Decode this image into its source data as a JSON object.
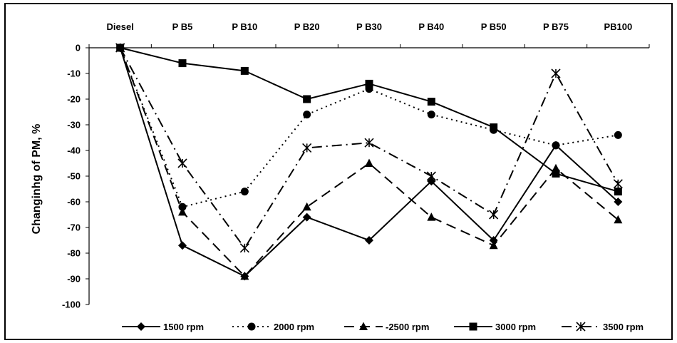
{
  "chart_data": {
    "type": "line",
    "title": "",
    "xlabel": "",
    "ylabel": "Changinhg of PM, %",
    "ylim": [
      -100,
      0
    ],
    "yticks": [
      0,
      -10,
      -20,
      -30,
      -40,
      -50,
      -60,
      -70,
      -80,
      -90,
      -100
    ],
    "x_axis_position": "top",
    "grid": false,
    "legend_position": "bottom",
    "categories": [
      "Diesel",
      "P B5",
      "P B10",
      "P B20",
      "P B30",
      "P B40",
      "P B50",
      "P B75",
      "PB100"
    ],
    "series": [
      {
        "name": "1500 rpm",
        "marker": "diamond",
        "dash": "solid",
        "color": "#000000",
        "values": [
          0,
          -77,
          -89,
          -66,
          -75,
          -52,
          -75,
          -38,
          -60
        ]
      },
      {
        "name": "2000 rpm",
        "marker": "circle",
        "dash": "dot",
        "color": "#000000",
        "values": [
          0,
          -62,
          -56,
          -26,
          -16,
          -26,
          -32,
          -38,
          -34
        ]
      },
      {
        "name": "2500 rpm",
        "legend_prefix": "-",
        "marker": "triangle",
        "dash": "dash",
        "color": "#000000",
        "values": [
          0,
          -64,
          -89,
          -62,
          -45,
          -66,
          -77,
          -47,
          -67
        ]
      },
      {
        "name": "3000 rpm",
        "marker": "square",
        "dash": "solid",
        "color": "#000000",
        "values": [
          0,
          -6,
          -9,
          -20,
          -14,
          -21,
          -31,
          -49,
          -56
        ]
      },
      {
        "name": "3500 rpm",
        "marker": "asterisk",
        "dash": "dashdot",
        "color": "#000000",
        "values": [
          0,
          -45,
          -78,
          -39,
          -37,
          -50,
          -65,
          -10,
          -53
        ]
      }
    ]
  }
}
